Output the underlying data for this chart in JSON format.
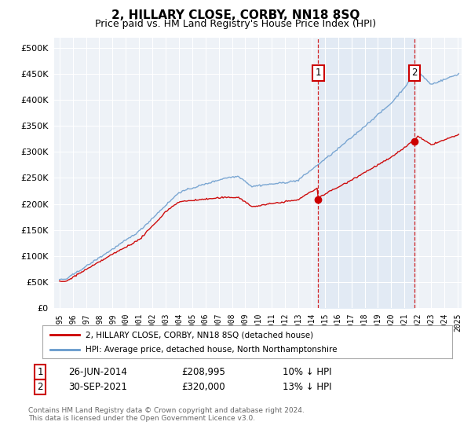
{
  "title": "2, HILLARY CLOSE, CORBY, NN18 8SQ",
  "subtitle": "Price paid vs. HM Land Registry's House Price Index (HPI)",
  "legend_line1": "2, HILLARY CLOSE, CORBY, NN18 8SQ (detached house)",
  "legend_line2": "HPI: Average price, detached house, North Northamptonshire",
  "annotation1_date": "26-JUN-2014",
  "annotation1_price": "£208,995",
  "annotation1_note": "10% ↓ HPI",
  "annotation2_date": "30-SEP-2021",
  "annotation2_price": "£320,000",
  "annotation2_note": "13% ↓ HPI",
  "footer": "Contains HM Land Registry data © Crown copyright and database right 2024.\nThis data is licensed under the Open Government Licence v3.0.",
  "red_color": "#cc0000",
  "blue_color": "#6699cc",
  "shade_color": "#dde8f4",
  "background_color": "#eef2f7",
  "ylim": [
    0,
    520000
  ],
  "yticks": [
    0,
    50000,
    100000,
    150000,
    200000,
    250000,
    300000,
    350000,
    400000,
    450000,
    500000
  ],
  "marker1_x": 2014.5,
  "marker1_y": 208995,
  "marker2_x": 2021.75,
  "marker2_y": 320000,
  "xmin": 1995,
  "xmax": 2025
}
